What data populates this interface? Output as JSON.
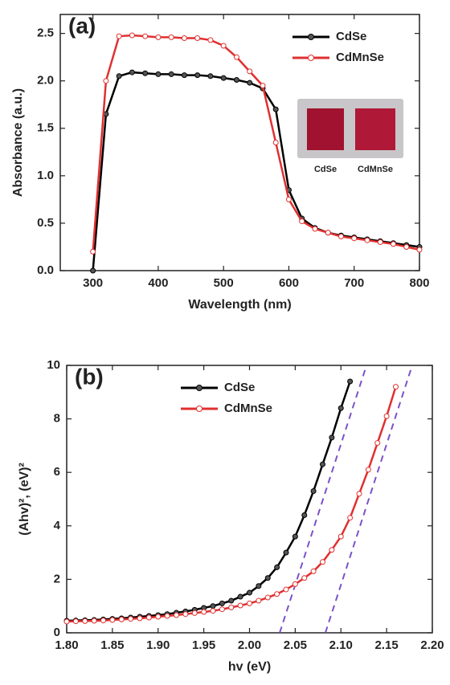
{
  "chart_data": [
    {
      "type": "line",
      "annotation": "(a)",
      "xlabel": "Wavelength (nm)",
      "ylabel": "Absorbance (a.u.)",
      "xlim": [
        250,
        800
      ],
      "ylim": [
        0,
        2.7
      ],
      "xticks": [
        300,
        400,
        500,
        600,
        700,
        800
      ],
      "yticks": [
        {
          "value": 0,
          "label": "0.0"
        },
        0.5,
        {
          "value": 1,
          "label": "1.0"
        },
        1.5,
        {
          "value": 2,
          "label": "2.0"
        },
        2.5
      ],
      "legend": "upper right",
      "inset_labels": [
        "CdSe",
        "CdMnSe"
      ],
      "series": [
        {
          "name": "CdSe",
          "color": "#000000",
          "marker_fill": "#555555",
          "x": [
            300,
            320,
            340,
            360,
            380,
            400,
            420,
            440,
            460,
            480,
            500,
            520,
            540,
            560,
            580,
            600,
            620,
            640,
            660,
            680,
            700,
            720,
            740,
            760,
            780,
            800
          ],
          "values": [
            0.0,
            1.65,
            2.05,
            2.09,
            2.08,
            2.07,
            2.07,
            2.06,
            2.06,
            2.05,
            2.03,
            2.01,
            1.98,
            1.92,
            1.7,
            0.85,
            0.55,
            0.45,
            0.4,
            0.37,
            0.35,
            0.33,
            0.31,
            0.29,
            0.27,
            0.25
          ]
        },
        {
          "name": "CdMnSe",
          "color": "#e03030",
          "marker_fill": "#ffffff",
          "x": [
            300,
            320,
            340,
            360,
            380,
            400,
            420,
            440,
            460,
            480,
            500,
            520,
            540,
            560,
            580,
            600,
            620,
            640,
            660,
            680,
            700,
            720,
            740,
            760,
            780,
            800
          ],
          "values": [
            0.2,
            2.0,
            2.47,
            2.48,
            2.47,
            2.46,
            2.46,
            2.45,
            2.45,
            2.43,
            2.37,
            2.25,
            2.1,
            1.95,
            1.35,
            0.75,
            0.52,
            0.44,
            0.4,
            0.36,
            0.34,
            0.32,
            0.3,
            0.28,
            0.25,
            0.22
          ]
        }
      ]
    },
    {
      "type": "line",
      "annotation": "(b)",
      "xlabel": "hv (eV)",
      "ylabel": "(Ahv)², (eV)²",
      "xlim": [
        1.8,
        2.2
      ],
      "ylim": [
        0,
        10
      ],
      "xticks": [
        {
          "value": 1.8,
          "label": "1.80"
        },
        1.85,
        {
          "value": 1.9,
          "label": "1.90"
        },
        1.95,
        {
          "value": 2.0,
          "label": "2.00"
        },
        2.05,
        {
          "value": 2.1,
          "label": "2.10"
        },
        2.15,
        {
          "value": 2.2,
          "label": "2.20"
        }
      ],
      "yticks": [
        0,
        2,
        4,
        6,
        8,
        10
      ],
      "legend": "upper left",
      "fit_lines": [
        {
          "color": "#7b52c9",
          "x": [
            2.033,
            2.128
          ],
          "y": [
            0,
            10
          ]
        },
        {
          "color": "#7b52c9",
          "x": [
            2.083,
            2.178
          ],
          "y": [
            0,
            10
          ]
        }
      ],
      "series": [
        {
          "name": "CdSe",
          "color": "#000000",
          "marker_fill": "#555555",
          "x": [
            1.8,
            1.81,
            1.82,
            1.83,
            1.84,
            1.85,
            1.86,
            1.87,
            1.88,
            1.89,
            1.9,
            1.91,
            1.92,
            1.93,
            1.94,
            1.95,
            1.96,
            1.97,
            1.98,
            1.99,
            2.0,
            2.01,
            2.02,
            2.03,
            2.04,
            2.05,
            2.06,
            2.07,
            2.08,
            2.09,
            2.1,
            2.11
          ],
          "values": [
            0.45,
            0.46,
            0.47,
            0.48,
            0.5,
            0.52,
            0.54,
            0.57,
            0.6,
            0.63,
            0.66,
            0.7,
            0.75,
            0.8,
            0.86,
            0.93,
            1.0,
            1.1,
            1.2,
            1.35,
            1.5,
            1.75,
            2.05,
            2.45,
            3.0,
            3.6,
            4.4,
            5.3,
            6.3,
            7.3,
            8.4,
            9.4
          ]
        },
        {
          "name": "CdMnSe",
          "color": "#e03030",
          "marker_fill": "#ffffff",
          "x": [
            1.8,
            1.81,
            1.82,
            1.83,
            1.84,
            1.85,
            1.86,
            1.87,
            1.88,
            1.89,
            1.9,
            1.91,
            1.92,
            1.93,
            1.94,
            1.95,
            1.96,
            1.97,
            1.98,
            1.99,
            2.0,
            2.01,
            2.02,
            2.03,
            2.04,
            2.05,
            2.06,
            2.07,
            2.08,
            2.09,
            2.1,
            2.11,
            2.12,
            2.13,
            2.14,
            2.15,
            2.16
          ],
          "values": [
            0.42,
            0.43,
            0.44,
            0.45,
            0.46,
            0.48,
            0.5,
            0.52,
            0.54,
            0.57,
            0.6,
            0.63,
            0.66,
            0.7,
            0.74,
            0.78,
            0.82,
            0.88,
            0.95,
            1.02,
            1.1,
            1.2,
            1.32,
            1.45,
            1.62,
            1.82,
            2.05,
            2.3,
            2.65,
            3.1,
            3.6,
            4.3,
            5.2,
            6.1,
            7.1,
            8.1,
            9.2
          ]
        }
      ]
    }
  ]
}
